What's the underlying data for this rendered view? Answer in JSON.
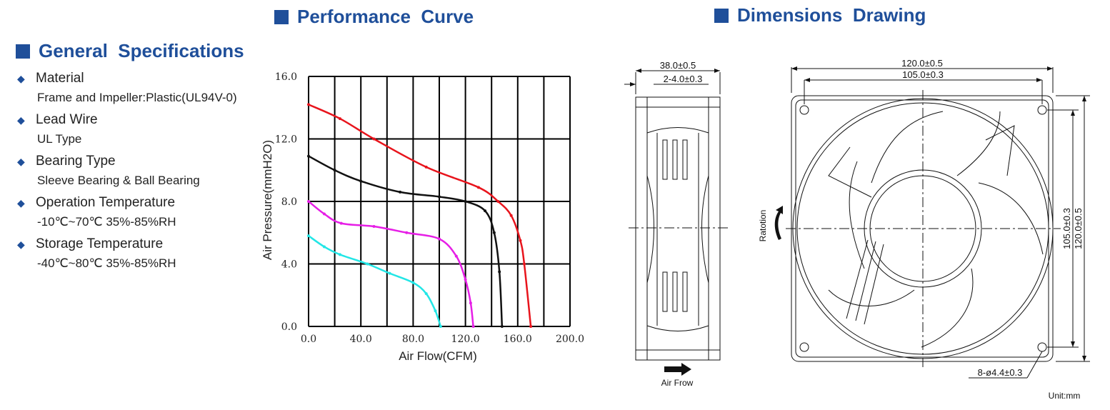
{
  "headings": {
    "performance": "Performance  Curve",
    "dimensions": "Dimensions  Drawing",
    "general": "General  Specifications"
  },
  "specs": [
    {
      "title": "Material",
      "value": "Frame and Impeller:Plastic(UL94V-0)"
    },
    {
      "title": "Lead Wire",
      "value": "UL Type"
    },
    {
      "title": "Bearing Type",
      "value": "Sleeve Bearing & Ball Bearing"
    },
    {
      "title": "Operation Temperature",
      "value": "-10℃~70℃ 35%-85%RH"
    },
    {
      "title": "Storage Temperature",
      "value": "-40℃~80℃ 35%-85%RH"
    }
  ],
  "chart_data": {
    "type": "line",
    "title": "",
    "xlabel": "Air Flow(CFM)",
    "ylabel": "Air Pressure(mmH2O)",
    "xlim": [
      0,
      200
    ],
    "ylim": [
      0,
      16
    ],
    "x_ticks": [
      "0.0",
      "40.0",
      "80.0",
      "120.0",
      "160.0",
      "200.0"
    ],
    "y_ticks": [
      "0.0",
      "4.0",
      "8.0",
      "12.0",
      "16.0"
    ],
    "grid": true,
    "series": [
      {
        "color": "#e8141c",
        "points": [
          [
            0,
            14.2
          ],
          [
            24,
            13.3
          ],
          [
            50,
            12.0
          ],
          [
            90,
            10.2
          ],
          [
            130,
            8.9
          ],
          [
            145,
            8.0
          ],
          [
            155,
            7.1
          ],
          [
            162,
            5.5
          ],
          [
            165,
            4.0
          ],
          [
            170,
            0
          ]
        ]
      },
      {
        "color": "#111111",
        "points": [
          [
            0,
            10.9
          ],
          [
            20,
            10.0
          ],
          [
            40,
            9.3
          ],
          [
            70,
            8.6
          ],
          [
            100,
            8.3
          ],
          [
            120,
            8.0
          ],
          [
            135,
            7.4
          ],
          [
            142,
            6.0
          ],
          [
            146,
            3.5
          ],
          [
            148,
            0
          ]
        ]
      },
      {
        "color": "#e61ee6",
        "points": [
          [
            0,
            8.0
          ],
          [
            12,
            7.2
          ],
          [
            25,
            6.6
          ],
          [
            50,
            6.4
          ],
          [
            75,
            6.0
          ],
          [
            100,
            5.6
          ],
          [
            113,
            4.5
          ],
          [
            120,
            3.0
          ],
          [
            124,
            1.5
          ],
          [
            126,
            0
          ]
        ]
      },
      {
        "color": "#22e6e6",
        "points": [
          [
            0,
            5.8
          ],
          [
            12,
            5.1
          ],
          [
            24,
            4.6
          ],
          [
            45,
            4.0
          ],
          [
            62,
            3.4
          ],
          [
            80,
            2.8
          ],
          [
            90,
            2.1
          ],
          [
            97,
            1.0
          ],
          [
            101,
            0
          ]
        ]
      }
    ]
  },
  "dimensions": {
    "side_width": "38.0±0.5",
    "side_flange": "2-4.0±0.3",
    "front_width": "120.0±0.5",
    "front_hole_spacing": "105.0±0.3",
    "vert_hole_spacing": "105.0±0.3",
    "vert_height": "120.0±0.5",
    "holes": "8-ø4.4±0.3",
    "rotation": "Ratotion",
    "airflow": "Air Frow",
    "unit": "Unit:mm"
  }
}
